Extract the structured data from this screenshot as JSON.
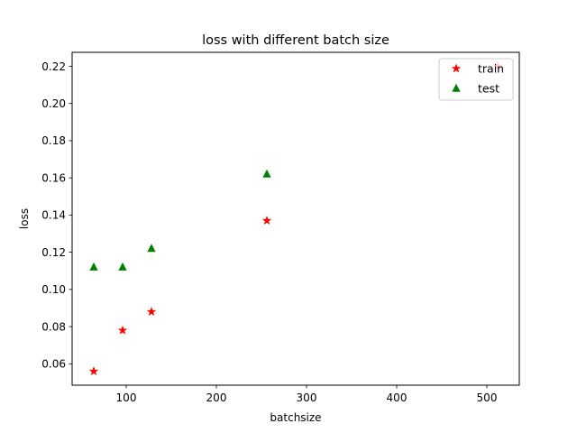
{
  "chart_data": {
    "type": "scatter",
    "title": "loss with different batch size",
    "xlabel": "batchsize",
    "ylabel": "loss",
    "xlim": [
      40,
      536
    ],
    "ylim": [
      0.0485,
      0.2275
    ],
    "xticks": [
      100,
      200,
      300,
      400,
      500
    ],
    "yticks": [
      0.06,
      0.08,
      0.1,
      0.12,
      0.14,
      0.16,
      0.18,
      0.2,
      0.22
    ],
    "xtick_labels": [
      "100",
      "200",
      "300",
      "400",
      "500"
    ],
    "ytick_labels": [
      "0.06",
      "0.08",
      "0.10",
      "0.12",
      "0.14",
      "0.16",
      "0.18",
      "0.20",
      "0.22"
    ],
    "grid": false,
    "legend_position": "upper right",
    "series": [
      {
        "name": "train",
        "marker": "star",
        "color": "#ff0000",
        "x": [
          64,
          96,
          128,
          256,
          512
        ],
        "y": [
          0.056,
          0.078,
          0.088,
          0.137,
          0.22
        ]
      },
      {
        "name": "test",
        "marker": "triangle",
        "color": "#008000",
        "x": [
          64,
          96,
          128,
          256
        ],
        "y": [
          0.112,
          0.112,
          0.122,
          0.162
        ]
      }
    ]
  }
}
